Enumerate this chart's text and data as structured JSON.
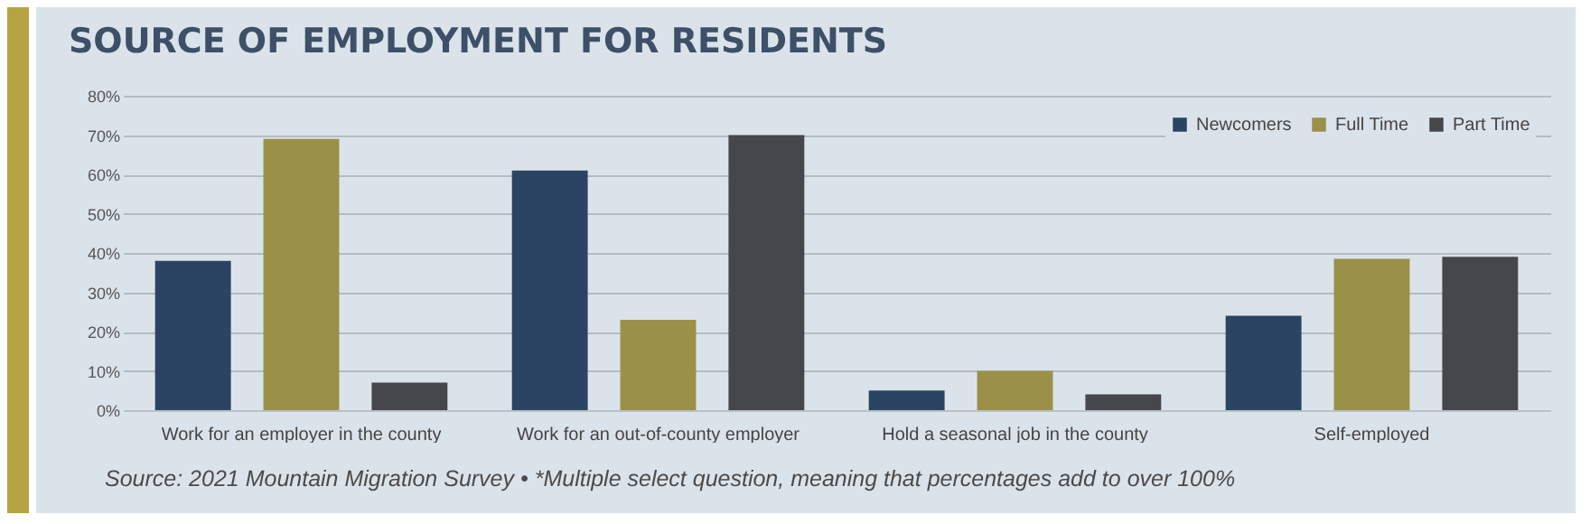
{
  "chart_data": {
    "type": "bar",
    "title": "SOURCE OF EMPLOYMENT FOR RESIDENTS",
    "categories": [
      "Work for an employer in the county",
      "Work for an out-of-county employer",
      "Hold a seasonal job in the county",
      "Self-employed"
    ],
    "series": [
      {
        "name": "Newcomers",
        "color": "#2b4463",
        "values": [
          38,
          61,
          5,
          24
        ]
      },
      {
        "name": "Full Time",
        "color": "#9a9048",
        "values": [
          69,
          23,
          10,
          38.5
        ]
      },
      {
        "name": "Part Time",
        "color": "#45474d",
        "values": [
          7,
          70,
          4,
          39
        ]
      }
    ],
    "ylim": [
      0,
      80
    ],
    "yticks": [
      {
        "value": 0,
        "label": "0%"
      },
      {
        "value": 10,
        "label": "10%"
      },
      {
        "value": 20,
        "label": "20%"
      },
      {
        "value": 30,
        "label": "30%"
      },
      {
        "value": 40,
        "label": "40%"
      },
      {
        "value": 50,
        "label": "50%"
      },
      {
        "value": 60,
        "label": "60%"
      },
      {
        "value": 70,
        "label": "70%"
      },
      {
        "value": 80,
        "label": "80%"
      }
    ],
    "grid": "y",
    "legend": "top right",
    "annotations": [
      "Source: 2021 Mountain Migration Survey • *Multiple select question, meaning that percentages add to over 100%"
    ]
  }
}
